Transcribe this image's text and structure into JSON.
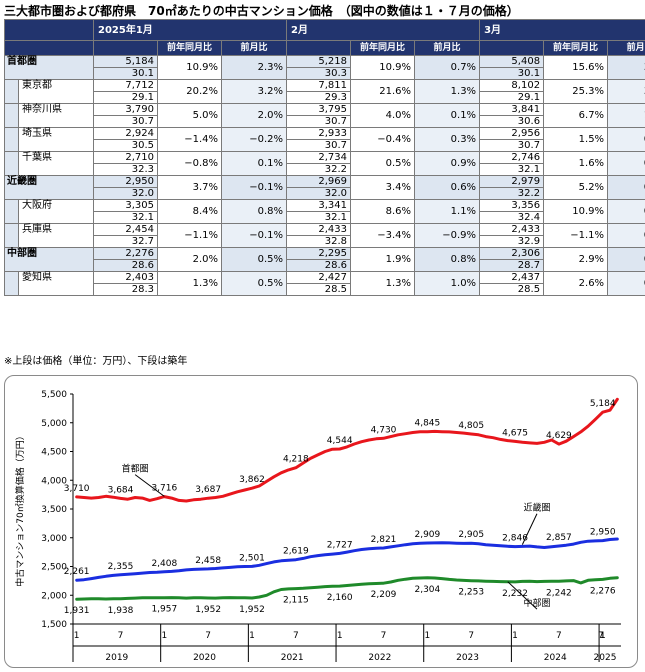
{
  "title": "三大都市圏および都府県　70㎡あたりの中古マンション価格　（図中の数値は１・７月の価格）",
  "table": {
    "months": [
      "2025年1月",
      "2月",
      "3月"
    ],
    "col_yoy": "前年同月比",
    "col_mom": "前月比",
    "rows": [
      {
        "name": "首都圏",
        "level": "region",
        "m": [
          {
            "price": "5,184",
            "age": "30.1",
            "yoy": "10.9%",
            "mom": "2.3%"
          },
          {
            "price": "5,218",
            "age": "30.3",
            "yoy": "10.9%",
            "mom": "0.7%"
          },
          {
            "price": "5,408",
            "age": "30.1",
            "yoy": "15.6%",
            "mom": "3.6%"
          }
        ]
      },
      {
        "name": "東京都",
        "level": "pref",
        "m": [
          {
            "price": "7,712",
            "age": "29.1",
            "yoy": "20.2%",
            "mom": "3.2%"
          },
          {
            "price": "7,811",
            "age": "29.3",
            "yoy": "21.6%",
            "mom": "1.3%"
          },
          {
            "price": "8,102",
            "age": "29.1",
            "yoy": "25.3%",
            "mom": "3.7%"
          }
        ]
      },
      {
        "name": "神奈川県",
        "level": "pref",
        "m": [
          {
            "price": "3,790",
            "age": "30.7",
            "yoy": "5.0%",
            "mom": "2.0%"
          },
          {
            "price": "3,795",
            "age": "30.7",
            "yoy": "4.0%",
            "mom": "0.1%"
          },
          {
            "price": "3,841",
            "age": "30.6",
            "yoy": "6.7%",
            "mom": "1.2%"
          }
        ]
      },
      {
        "name": "埼玉県",
        "level": "pref",
        "m": [
          {
            "price": "2,924",
            "age": "30.5",
            "yoy": "−1.4%",
            "mom": "−0.2%"
          },
          {
            "price": "2,933",
            "age": "30.7",
            "yoy": "−0.4%",
            "mom": "0.3%"
          },
          {
            "price": "2,956",
            "age": "30.7",
            "yoy": "1.5%",
            "mom": "0.8%"
          }
        ]
      },
      {
        "name": "千葉県",
        "level": "pref",
        "m": [
          {
            "price": "2,710",
            "age": "32.3",
            "yoy": "−0.8%",
            "mom": "0.1%"
          },
          {
            "price": "2,734",
            "age": "32.2",
            "yoy": "0.5%",
            "mom": "0.9%"
          },
          {
            "price": "2,746",
            "age": "32.1",
            "yoy": "1.6%",
            "mom": "0.4%"
          }
        ]
      },
      {
        "name": "近畿圏",
        "level": "region",
        "m": [
          {
            "price": "2,950",
            "age": "32.0",
            "yoy": "3.7%",
            "mom": "−0.1%"
          },
          {
            "price": "2,969",
            "age": "32.0",
            "yoy": "3.4%",
            "mom": "0.6%"
          },
          {
            "price": "2,979",
            "age": "32.2",
            "yoy": "5.2%",
            "mom": "0.3%"
          }
        ]
      },
      {
        "name": "大阪府",
        "level": "pref",
        "m": [
          {
            "price": "3,305",
            "age": "32.1",
            "yoy": "8.4%",
            "mom": "0.8%"
          },
          {
            "price": "3,341",
            "age": "32.1",
            "yoy": "8.6%",
            "mom": "1.1%"
          },
          {
            "price": "3,356",
            "age": "32.4",
            "yoy": "10.9%",
            "mom": "0.4%"
          }
        ]
      },
      {
        "name": "兵庫県",
        "level": "pref",
        "m": [
          {
            "price": "2,454",
            "age": "32.7",
            "yoy": "−1.1%",
            "mom": "−0.1%"
          },
          {
            "price": "2,433",
            "age": "32.8",
            "yoy": "−3.4%",
            "mom": "−0.9%"
          },
          {
            "price": "2,433",
            "age": "32.9",
            "yoy": "−1.1%",
            "mom": "0.0%"
          }
        ]
      },
      {
        "name": "中部圏",
        "level": "region",
        "m": [
          {
            "price": "2,276",
            "age": "28.6",
            "yoy": "2.0%",
            "mom": "0.5%"
          },
          {
            "price": "2,295",
            "age": "28.6",
            "yoy": "1.9%",
            "mom": "0.8%"
          },
          {
            "price": "2,306",
            "age": "28.7",
            "yoy": "2.9%",
            "mom": "0.5%"
          }
        ]
      },
      {
        "name": "愛知県",
        "level": "pref",
        "m": [
          {
            "price": "2,403",
            "age": "28.3",
            "yoy": "1.3%",
            "mom": "0.5%"
          },
          {
            "price": "2,427",
            "age": "28.5",
            "yoy": "1.3%",
            "mom": "1.0%"
          },
          {
            "price": "2,437",
            "age": "28.5",
            "yoy": "2.6%",
            "mom": "0.4%"
          }
        ]
      }
    ]
  },
  "note": "※上段は価格（単位：万円）、下段は築年",
  "chart_data": {
    "type": "line",
    "ylabel": "中古マンション70㎡換算価格（万円）",
    "ylim": [
      1500,
      5500
    ],
    "yticks": [
      1500,
      2000,
      2500,
      3000,
      3500,
      4000,
      4500,
      5000,
      5500
    ],
    "ytick_labels": [
      "1,500",
      "2,000",
      "2,500",
      "3,000",
      "3,500",
      "4,000",
      "4,500",
      "5,000",
      "5,500"
    ],
    "x_month_ticks": [
      "1",
      "7",
      "1",
      "7",
      "1",
      "7",
      "1",
      "7",
      "1",
      "7",
      "1",
      "7",
      "1",
      "7"
    ],
    "x_years": [
      "2019",
      "2020",
      "2021",
      "2022",
      "2023",
      "2024",
      "2025"
    ],
    "grid": false,
    "colors": {
      "shutoken": "#e8161c",
      "kinki": "#1a2ee0",
      "chubu": "#1f8a2a"
    },
    "series": [
      {
        "name": "首都圏",
        "key": "shutoken",
        "x": [
          0,
          1,
          2,
          3,
          4,
          5,
          6,
          7,
          8,
          9,
          10,
          11,
          12,
          13,
          14,
          15,
          16,
          17,
          18,
          19,
          20,
          21,
          22,
          23,
          24,
          25,
          26,
          27,
          28,
          29,
          30,
          31,
          32,
          33,
          34,
          35,
          36,
          37,
          38,
          39,
          40,
          41,
          42,
          43,
          44,
          45,
          46,
          47,
          48,
          49,
          50,
          51,
          52,
          53,
          54,
          55,
          56,
          57,
          58,
          59,
          60,
          61,
          62,
          63,
          64,
          65,
          66,
          67,
          68,
          69,
          70,
          71,
          72,
          73,
          74
        ],
        "values": [
          3710,
          3700,
          3690,
          3700,
          3720,
          3705,
          3684,
          3670,
          3700,
          3690,
          3650,
          3680,
          3716,
          3690,
          3650,
          3640,
          3660,
          3670,
          3687,
          3700,
          3720,
          3760,
          3800,
          3830,
          3862,
          3900,
          3980,
          4060,
          4130,
          4180,
          4218,
          4300,
          4380,
          4440,
          4500,
          4540,
          4544,
          4580,
          4630,
          4670,
          4700,
          4720,
          4730,
          4760,
          4790,
          4810,
          4830,
          4845,
          4845,
          4850,
          4845,
          4840,
          4830,
          4820,
          4805,
          4790,
          4760,
          4740,
          4710,
          4690,
          4675,
          4660,
          4650,
          4640,
          4660,
          4700,
          4629,
          4680,
          4760,
          4840,
          4940,
          5060,
          5184,
          5218,
          5408
        ],
        "labels": [
          {
            "i": 0,
            "t": "3,710"
          },
          {
            "i": 6,
            "t": "3,684"
          },
          {
            "i": 12,
            "t": "3,716"
          },
          {
            "i": 18,
            "t": "3,687"
          },
          {
            "i": 24,
            "t": "3,862"
          },
          {
            "i": 30,
            "t": "4,218"
          },
          {
            "i": 36,
            "t": "4,544"
          },
          {
            "i": 42,
            "t": "4,730"
          },
          {
            "i": 48,
            "t": "4,845"
          },
          {
            "i": 54,
            "t": "4,805"
          },
          {
            "i": 60,
            "t": "4,675"
          },
          {
            "i": 66,
            "t": "4,629"
          },
          {
            "i": 72,
            "t": "5,184"
          }
        ],
        "tag": "首都圏"
      },
      {
        "name": "近畿圏",
        "key": "kinki",
        "x": [
          0,
          1,
          2,
          3,
          4,
          5,
          6,
          7,
          8,
          9,
          10,
          11,
          12,
          13,
          14,
          15,
          16,
          17,
          18,
          19,
          20,
          21,
          22,
          23,
          24,
          25,
          26,
          27,
          28,
          29,
          30,
          31,
          32,
          33,
          34,
          35,
          36,
          37,
          38,
          39,
          40,
          41,
          42,
          43,
          44,
          45,
          46,
          47,
          48,
          49,
          50,
          51,
          52,
          53,
          54,
          55,
          56,
          57,
          58,
          59,
          60,
          61,
          62,
          63,
          64,
          65,
          66,
          67,
          68,
          69,
          70,
          71,
          72,
          73,
          74
        ],
        "values": [
          2261,
          2270,
          2290,
          2310,
          2330,
          2345,
          2355,
          2365,
          2375,
          2385,
          2395,
          2400,
          2408,
          2415,
          2425,
          2440,
          2450,
          2455,
          2458,
          2465,
          2475,
          2485,
          2495,
          2500,
          2501,
          2520,
          2550,
          2580,
          2600,
          2610,
          2619,
          2640,
          2670,
          2690,
          2705,
          2715,
          2727,
          2750,
          2775,
          2795,
          2810,
          2818,
          2821,
          2840,
          2860,
          2880,
          2895,
          2905,
          2909,
          2910,
          2912,
          2910,
          2905,
          2902,
          2905,
          2895,
          2880,
          2870,
          2860,
          2852,
          2846,
          2850,
          2855,
          2840,
          2830,
          2845,
          2857,
          2870,
          2890,
          2920,
          2940,
          2945,
          2950,
          2969,
          2979
        ],
        "labels": [
          {
            "i": 0,
            "t": "2,261"
          },
          {
            "i": 6,
            "t": "2,355"
          },
          {
            "i": 12,
            "t": "2,408"
          },
          {
            "i": 18,
            "t": "2,458"
          },
          {
            "i": 24,
            "t": "2,501"
          },
          {
            "i": 30,
            "t": "2,619"
          },
          {
            "i": 36,
            "t": "2,727"
          },
          {
            "i": 42,
            "t": "2,821"
          },
          {
            "i": 48,
            "t": "2,909"
          },
          {
            "i": 54,
            "t": "2,905"
          },
          {
            "i": 60,
            "t": "2,846"
          },
          {
            "i": 66,
            "t": "2,857"
          },
          {
            "i": 72,
            "t": "2,950"
          }
        ],
        "tag": "近畿圏"
      },
      {
        "name": "中部圏",
        "key": "chubu",
        "x": [
          0,
          1,
          2,
          3,
          4,
          5,
          6,
          7,
          8,
          9,
          10,
          11,
          12,
          13,
          14,
          15,
          16,
          17,
          18,
          19,
          20,
          21,
          22,
          23,
          24,
          25,
          26,
          27,
          28,
          29,
          30,
          31,
          32,
          33,
          34,
          35,
          36,
          37,
          38,
          39,
          40,
          41,
          42,
          43,
          44,
          45,
          46,
          47,
          48,
          49,
          50,
          51,
          52,
          53,
          54,
          55,
          56,
          57,
          58,
          59,
          60,
          61,
          62,
          63,
          64,
          65,
          66,
          67,
          68,
          69,
          70,
          71,
          72,
          73,
          74
        ],
        "values": [
          1931,
          1935,
          1940,
          1938,
          1935,
          1940,
          1938,
          1945,
          1950,
          1955,
          1958,
          1955,
          1957,
          1960,
          1955,
          1950,
          1958,
          1955,
          1952,
          1950,
          1955,
          1960,
          1958,
          1955,
          1952,
          1970,
          2000,
          2060,
          2100,
          2110,
          2115,
          2120,
          2130,
          2140,
          2150,
          2155,
          2160,
          2170,
          2180,
          2190,
          2200,
          2205,
          2209,
          2230,
          2260,
          2280,
          2295,
          2300,
          2304,
          2300,
          2290,
          2275,
          2265,
          2258,
          2253,
          2250,
          2245,
          2240,
          2238,
          2235,
          2232,
          2240,
          2245,
          2238,
          2240,
          2245,
          2242,
          2250,
          2255,
          2215,
          2260,
          2270,
          2276,
          2295,
          2306
        ],
        "labels": [
          {
            "i": 0,
            "t": "1,931"
          },
          {
            "i": 6,
            "t": "1,938"
          },
          {
            "i": 12,
            "t": "1,957"
          },
          {
            "i": 18,
            "t": "1,952"
          },
          {
            "i": 24,
            "t": "1,952"
          },
          {
            "i": 30,
            "t": "2,115"
          },
          {
            "i": 36,
            "t": "2,160"
          },
          {
            "i": 42,
            "t": "2,209"
          },
          {
            "i": 48,
            "t": "2,304"
          },
          {
            "i": 54,
            "t": "2,253"
          },
          {
            "i": 60,
            "t": "2,232"
          },
          {
            "i": 66,
            "t": "2,242"
          },
          {
            "i": 72,
            "t": "2,276"
          }
        ],
        "tag": "中部圏"
      }
    ]
  }
}
